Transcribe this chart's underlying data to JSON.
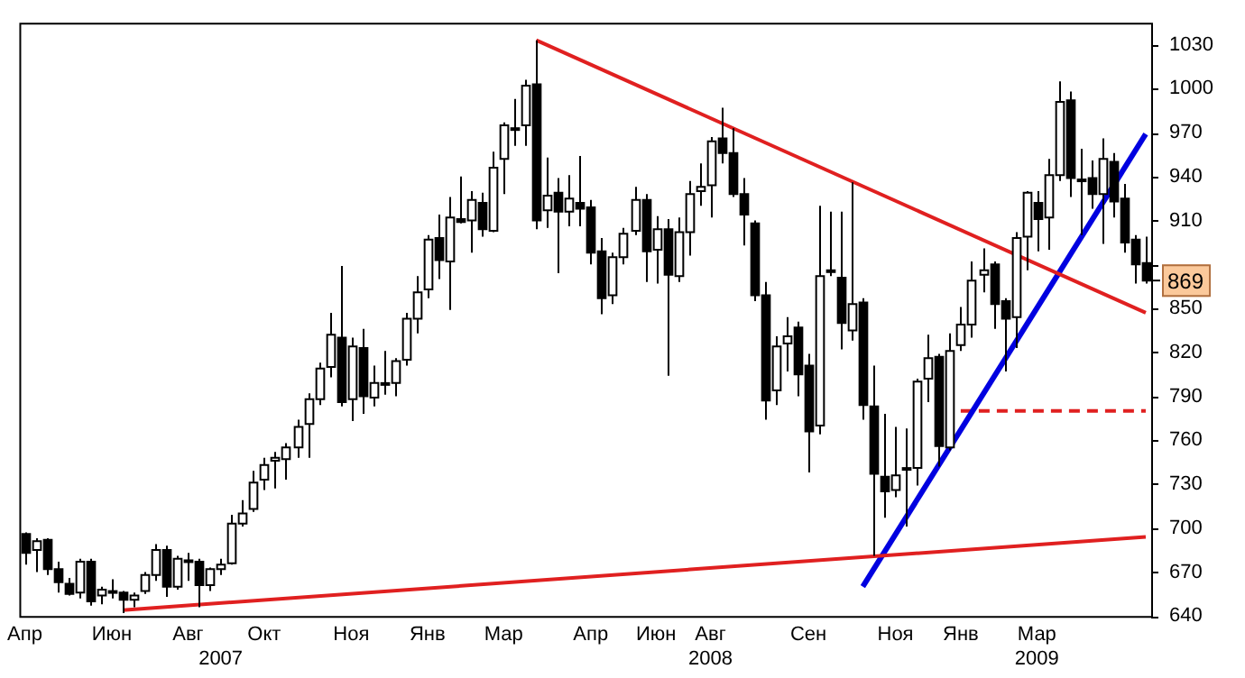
{
  "chart_data": {
    "type": "candlestick",
    "categories": [
      "Апр",
      null,
      null,
      null,
      null,
      null,
      null,
      null,
      "Июн",
      null,
      null,
      null,
      null,
      null,
      null,
      "Авг",
      null,
      null,
      "\n2007",
      null,
      null,
      null,
      "Окт",
      null,
      null,
      null,
      null,
      null,
      null,
      null,
      "Ноя",
      null,
      null,
      null,
      null,
      null,
      null,
      "Янв",
      null,
      null,
      null,
      null,
      null,
      null,
      "Мар",
      null,
      null,
      null,
      null,
      null,
      null,
      null,
      "Апр",
      null,
      null,
      null,
      null,
      null,
      "Июн",
      null,
      null,
      null,
      null,
      "Авг\n2008",
      null,
      null,
      null,
      null,
      null,
      null,
      null,
      null,
      "Сен",
      null,
      null,
      null,
      null,
      null,
      null,
      null,
      "Ноя",
      null,
      null,
      null,
      null,
      null,
      "Янв",
      null,
      null,
      null,
      null,
      null,
      null,
      "Мар\n2009",
      null,
      null,
      null,
      null,
      null,
      null,
      null,
      null,
      null,
      null
    ],
    "ohlc": [
      [
        696,
        697,
        675,
        683
      ],
      [
        685,
        693,
        670,
        691
      ],
      [
        692,
        693,
        668,
        672
      ],
      [
        672,
        677,
        656,
        663
      ],
      [
        662,
        666,
        654,
        655
      ],
      [
        656,
        679,
        652,
        677
      ],
      [
        677,
        679,
        647,
        650
      ],
      [
        654,
        660,
        648,
        658
      ],
      [
        657,
        665,
        652,
        657
      ],
      [
        656,
        657,
        642,
        651
      ],
      [
        651,
        656,
        646,
        654
      ],
      [
        657,
        670,
        655,
        668
      ],
      [
        668,
        689,
        664,
        685
      ],
      [
        685,
        688,
        653,
        660
      ],
      [
        660,
        681,
        658,
        679
      ],
      [
        678,
        683,
        664,
        677
      ],
      [
        677,
        679,
        646,
        661
      ],
      [
        661,
        673,
        657,
        672
      ],
      [
        672,
        679,
        668,
        675
      ],
      [
        676,
        709,
        675,
        703
      ],
      [
        703,
        719,
        701,
        710
      ],
      [
        713,
        739,
        711,
        731
      ],
      [
        733,
        748,
        726,
        743
      ],
      [
        746,
        752,
        727,
        748
      ],
      [
        747,
        758,
        733,
        755
      ],
      [
        755,
        774,
        748,
        769
      ],
      [
        771,
        792,
        748,
        788
      ],
      [
        788,
        813,
        784,
        809
      ],
      [
        810,
        847,
        803,
        832
      ],
      [
        830,
        879,
        783,
        786
      ],
      [
        788,
        830,
        773,
        824
      ],
      [
        823,
        836,
        778,
        790
      ],
      [
        789,
        811,
        783,
        799
      ],
      [
        799,
        821,
        791,
        799
      ],
      [
        799,
        816,
        790,
        814
      ],
      [
        815,
        847,
        811,
        843
      ],
      [
        843,
        872,
        833,
        861
      ],
      [
        863,
        900,
        857,
        897
      ],
      [
        898,
        914,
        870,
        883
      ],
      [
        882,
        926,
        849,
        912
      ],
      [
        911,
        940,
        908,
        909
      ],
      [
        910,
        930,
        888,
        924
      ],
      [
        922,
        929,
        899,
        904
      ],
      [
        903,
        957,
        902,
        946
      ],
      [
        952,
        977,
        928,
        975
      ],
      [
        973,
        993,
        961,
        973
      ],
      [
        975,
        1006,
        961,
        1002
      ],
      [
        1003,
        1033,
        904,
        910
      ],
      [
        917,
        953,
        905,
        927
      ],
      [
        929,
        939,
        874,
        916
      ],
      [
        916,
        941,
        906,
        925
      ],
      [
        922,
        954,
        906,
        918
      ],
      [
        919,
        924,
        880,
        888
      ],
      [
        889,
        898,
        846,
        857
      ],
      [
        859,
        888,
        853,
        885
      ],
      [
        885,
        905,
        880,
        901
      ],
      [
        903,
        933,
        900,
        924
      ],
      [
        924,
        928,
        868,
        889
      ],
      [
        890,
        913,
        867,
        904
      ],
      [
        904,
        911,
        804,
        873
      ],
      [
        872,
        912,
        868,
        902
      ],
      [
        902,
        937,
        886,
        928
      ],
      [
        930,
        949,
        920,
        933
      ],
      [
        934,
        967,
        912,
        964
      ],
      [
        966,
        987,
        949,
        956
      ],
      [
        956,
        973,
        926,
        928
      ],
      [
        928,
        939,
        893,
        914
      ],
      [
        908,
        910,
        855,
        859
      ],
      [
        859,
        868,
        774,
        787
      ],
      [
        794,
        831,
        784,
        824
      ],
      [
        826,
        844,
        807,
        831
      ],
      [
        837,
        841,
        790,
        805
      ],
      [
        811,
        819,
        738,
        766
      ],
      [
        770,
        920,
        764,
        872
      ],
      [
        876,
        916,
        872,
        876
      ],
      [
        871,
        916,
        822,
        840
      ],
      [
        835,
        936,
        828,
        853
      ],
      [
        854,
        857,
        774,
        784
      ],
      [
        783,
        811,
        681,
        737
      ],
      [
        735,
        778,
        707,
        725
      ],
      [
        726,
        769,
        721,
        736
      ],
      [
        741,
        768,
        701,
        741
      ],
      [
        741,
        802,
        729,
        800
      ],
      [
        802,
        832,
        786,
        816
      ],
      [
        817,
        819,
        742,
        756
      ],
      [
        755,
        833,
        753,
        821
      ],
      [
        825,
        851,
        821,
        839
      ],
      [
        839,
        882,
        830,
        869
      ],
      [
        873,
        891,
        861,
        876
      ],
      [
        880,
        882,
        836,
        853
      ],
      [
        855,
        857,
        807,
        843
      ],
      [
        844,
        902,
        823,
        898
      ],
      [
        899,
        930,
        876,
        929
      ],
      [
        922,
        930,
        889,
        911
      ],
      [
        912,
        952,
        890,
        941
      ],
      [
        941,
        1005,
        937,
        991
      ],
      [
        992,
        998,
        926,
        939
      ],
      [
        938,
        959,
        900,
        938
      ],
      [
        939,
        951,
        918,
        928
      ],
      [
        928,
        966,
        894,
        952
      ],
      [
        950,
        956,
        912,
        923
      ],
      [
        925,
        935,
        888,
        895
      ],
      [
        897,
        900,
        867,
        880
      ],
      [
        881,
        899,
        867,
        869
      ]
    ],
    "series": [
      {
        "type": "line",
        "color": "#e02020",
        "line_style": "solid",
        "values": [
          null,
          null,
          null,
          null,
          null,
          null,
          null,
          null,
          null,
          null,
          null,
          null,
          null,
          null,
          null,
          null,
          null,
          null,
          null,
          null,
          null,
          null,
          null,
          null,
          null,
          null,
          null,
          null,
          null,
          null,
          null,
          null,
          null,
          null,
          null,
          null,
          null,
          null,
          null,
          null,
          null,
          null,
          null,
          null,
          null,
          null,
          null,
          1033,
          null,
          null,
          null,
          null,
          null,
          null,
          null,
          null,
          null,
          null,
          null,
          null,
          null,
          null,
          null,
          null,
          null,
          null,
          null,
          null,
          null,
          null,
          null,
          null,
          null,
          null,
          null,
          null,
          null,
          null,
          null,
          null,
          null,
          null,
          null,
          null,
          null,
          null,
          null,
          null,
          null,
          null,
          null,
          null,
          null,
          null,
          null,
          null,
          null,
          null,
          null,
          null,
          null,
          null,
          null,
          847
        ]
      },
      {
        "type": "line",
        "color": "#e02020",
        "line_style": "solid",
        "values": [
          null,
          null,
          null,
          null,
          null,
          null,
          null,
          null,
          null,
          644,
          null,
          null,
          null,
          null,
          null,
          null,
          null,
          null,
          null,
          null,
          null,
          null,
          null,
          null,
          null,
          null,
          null,
          null,
          null,
          null,
          null,
          null,
          null,
          null,
          null,
          null,
          null,
          null,
          null,
          null,
          null,
          null,
          null,
          null,
          null,
          null,
          null,
          null,
          null,
          null,
          null,
          null,
          null,
          null,
          null,
          null,
          null,
          null,
          null,
          null,
          null,
          null,
          null,
          null,
          null,
          null,
          null,
          null,
          null,
          null,
          null,
          null,
          null,
          null,
          null,
          null,
          null,
          null,
          null,
          null,
          null,
          null,
          null,
          null,
          null,
          null,
          null,
          null,
          null,
          null,
          null,
          null,
          null,
          null,
          null,
          null,
          null,
          null,
          null,
          null,
          null,
          null,
          null,
          694
        ]
      },
      {
        "type": "line",
        "color": "#0000e0",
        "line_style": "solid",
        "values": [
          null,
          null,
          null,
          null,
          null,
          null,
          null,
          null,
          null,
          null,
          null,
          null,
          null,
          null,
          null,
          null,
          null,
          null,
          null,
          null,
          null,
          null,
          null,
          null,
          null,
          null,
          null,
          null,
          null,
          null,
          null,
          null,
          null,
          null,
          null,
          null,
          null,
          null,
          null,
          null,
          null,
          null,
          null,
          null,
          null,
          null,
          null,
          null,
          null,
          null,
          null,
          null,
          null,
          null,
          null,
          null,
          null,
          null,
          null,
          null,
          null,
          null,
          null,
          null,
          null,
          null,
          null,
          null,
          null,
          null,
          null,
          null,
          null,
          null,
          null,
          null,
          null,
          660,
          null,
          null,
          null,
          null,
          null,
          null,
          null,
          null,
          null,
          null,
          null,
          null,
          null,
          null,
          null,
          null,
          null,
          null,
          null,
          null,
          null,
          null,
          null,
          null,
          null,
          969
        ]
      },
      {
        "type": "line",
        "color": "#e02020",
        "line_style": "dashed",
        "values": [
          null,
          null,
          null,
          null,
          null,
          null,
          null,
          null,
          null,
          null,
          null,
          null,
          null,
          null,
          null,
          null,
          null,
          null,
          null,
          null,
          null,
          null,
          null,
          null,
          null,
          null,
          null,
          null,
          null,
          null,
          null,
          null,
          null,
          null,
          null,
          null,
          null,
          null,
          null,
          null,
          null,
          null,
          null,
          null,
          null,
          null,
          null,
          null,
          null,
          null,
          null,
          null,
          null,
          null,
          null,
          null,
          null,
          null,
          null,
          null,
          null,
          null,
          null,
          null,
          null,
          null,
          null,
          null,
          null,
          null,
          null,
          null,
          null,
          null,
          null,
          null,
          null,
          null,
          null,
          null,
          null,
          null,
          null,
          null,
          null,
          null,
          780,
          null,
          null,
          null,
          null,
          null,
          null,
          null,
          null,
          null,
          null,
          null,
          null,
          null,
          null,
          null,
          null,
          780
        ]
      }
    ],
    "ylim": [
      640,
      1045
    ],
    "yticks": [
      640,
      670,
      700,
      730,
      760,
      790,
      820,
      850,
      {
        "value": 880,
        "label": null
      },
      910,
      940,
      970,
      1000,
      1030
    ],
    "annotations": [
      "869"
    ],
    "grid": false,
    "legend": false
  }
}
